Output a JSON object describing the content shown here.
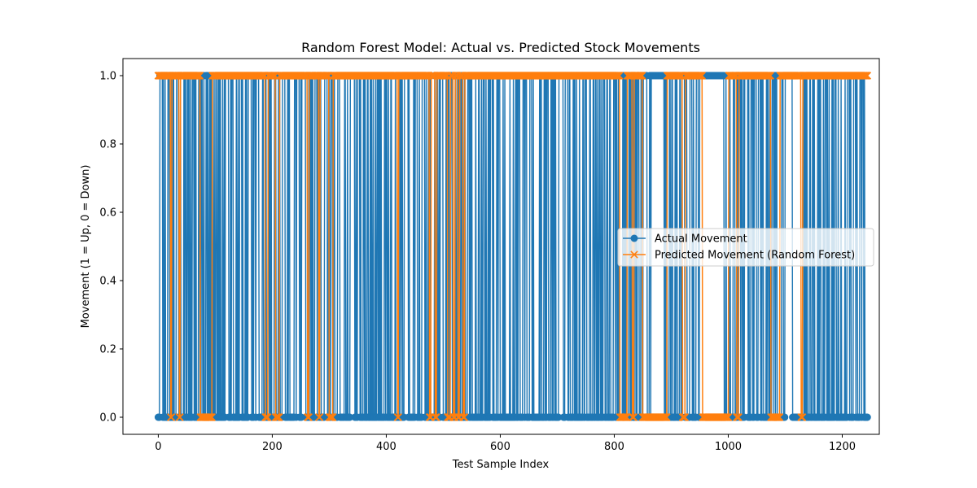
{
  "chart_data": {
    "type": "line",
    "title": "Random Forest Model: Actual vs. Predicted Stock Movements",
    "xlabel": "Test Sample Index",
    "ylabel": "Movement (1 = Up, 0 = Down)",
    "xlim": [
      -62,
      1265
    ],
    "ylim": [
      -0.05,
      1.05
    ],
    "x_ticks": [
      0,
      200,
      400,
      600,
      800,
      1000,
      1200
    ],
    "x_tick_labels": [
      "0",
      "200",
      "400",
      "600",
      "800",
      "1000",
      "1200"
    ],
    "y_ticks": [
      0.0,
      0.2,
      0.4,
      0.6,
      0.8,
      1.0
    ],
    "y_tick_labels": [
      "0.0",
      "0.2",
      "0.4",
      "0.6",
      "0.8",
      "1.0"
    ],
    "grid": false,
    "legend_position": "center-right",
    "n_samples": 1245,
    "series": [
      {
        "name": "Actual Movement",
        "marker": "o",
        "color": "#1f77b4",
        "zero_segments": [
          [
            0,
            2
          ],
          [
            10,
            11
          ],
          [
            20,
            22
          ],
          [
            30,
            31
          ],
          [
            42,
            44
          ],
          [
            55,
            56
          ],
          [
            68,
            70
          ],
          [
            81,
            83
          ],
          [
            96,
            97
          ],
          [
            103,
            104
          ],
          [
            110,
            112
          ],
          [
            125,
            126
          ],
          [
            138,
            139
          ],
          [
            150,
            152
          ],
          [
            164,
            165
          ],
          [
            177,
            178
          ],
          [
            185,
            187
          ],
          [
            200,
            201
          ],
          [
            214,
            216
          ],
          [
            225,
            226
          ],
          [
            236,
            238
          ],
          [
            248,
            249
          ],
          [
            260,
            262
          ],
          [
            273,
            274
          ],
          [
            286,
            288
          ],
          [
            297,
            298
          ],
          [
            310,
            312
          ],
          [
            322,
            323
          ],
          [
            333,
            335
          ],
          [
            345,
            346
          ],
          [
            357,
            359
          ],
          [
            370,
            371
          ],
          [
            382,
            383
          ],
          [
            394,
            396
          ],
          [
            406,
            407
          ],
          [
            418,
            420
          ],
          [
            430,
            431
          ],
          [
            443,
            444
          ],
          [
            455,
            457
          ],
          [
            468,
            469
          ],
          [
            479,
            481
          ],
          [
            491,
            492
          ],
          [
            503,
            504
          ],
          [
            516,
            518
          ],
          [
            528,
            529
          ],
          [
            540,
            542
          ],
          [
            552,
            553
          ],
          [
            564,
            565
          ],
          [
            576,
            578
          ],
          [
            589,
            590
          ],
          [
            601,
            603
          ],
          [
            613,
            614
          ],
          [
            625,
            626
          ],
          [
            637,
            639
          ],
          [
            650,
            651
          ],
          [
            662,
            664
          ],
          [
            674,
            675
          ],
          [
            686,
            687
          ],
          [
            698,
            700
          ],
          [
            711,
            712
          ],
          [
            723,
            725
          ],
          [
            735,
            736
          ],
          [
            747,
            748
          ],
          [
            760,
            762
          ],
          [
            772,
            773
          ],
          [
            784,
            786
          ],
          [
            796,
            797
          ],
          [
            808,
            809
          ],
          [
            822,
            824
          ],
          [
            834,
            835
          ],
          [
            845,
            846
          ],
          [
            858,
            860
          ],
          [
            870,
            871
          ],
          [
            880,
            881
          ],
          [
            893,
            895
          ],
          [
            905,
            906
          ],
          [
            917,
            918
          ],
          [
            928,
            930
          ],
          [
            940,
            941
          ],
          [
            970,
            972
          ],
          [
            985,
            986
          ],
          [
            1000,
            1001
          ],
          [
            1012,
            1014
          ],
          [
            1025,
            1026
          ],
          [
            1038,
            1039
          ],
          [
            1050,
            1052
          ],
          [
            1062,
            1063
          ],
          [
            1075,
            1076
          ],
          [
            1088,
            1090
          ],
          [
            1100,
            1101
          ],
          [
            1112,
            1130
          ],
          [
            1140,
            1141
          ],
          [
            1152,
            1154
          ],
          [
            1165,
            1166
          ],
          [
            1178,
            1179
          ],
          [
            1190,
            1192
          ],
          [
            1203,
            1204
          ],
          [
            1216,
            1217
          ],
          [
            1228,
            1230
          ],
          [
            1240,
            1244
          ]
        ],
        "one_gaps": [
          [
            870,
            885
          ],
          [
            950,
            992
          ],
          [
            1100,
            1112
          ]
        ]
      },
      {
        "name": "Predicted Movement (Random Forest)",
        "marker": "x",
        "color": "#ff7f0e",
        "zero_segments": [
          [
            22,
            23
          ],
          [
            37,
            38
          ],
          [
            74,
            94
          ],
          [
            188,
            192
          ],
          [
            206,
            212
          ],
          [
            262,
            264
          ],
          [
            282,
            283
          ],
          [
            300,
            306
          ],
          [
            420,
            421
          ],
          [
            476,
            478
          ],
          [
            486,
            488
          ],
          [
            508,
            512
          ],
          [
            518,
            520
          ],
          [
            526,
            528
          ],
          [
            535,
            537
          ],
          [
            810,
            822
          ],
          [
            832,
            834
          ],
          [
            850,
            892
          ],
          [
            920,
            924
          ],
          [
            955,
            1000
          ],
          [
            1015,
            1018
          ],
          [
            1075,
            1090
          ],
          [
            1128,
            1130
          ]
        ]
      }
    ]
  }
}
